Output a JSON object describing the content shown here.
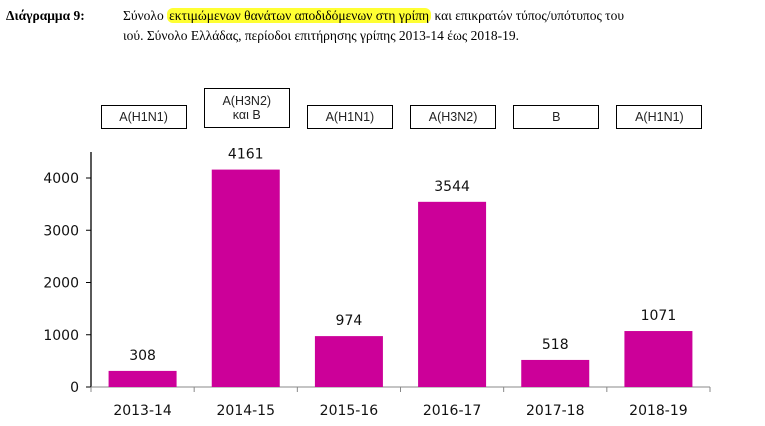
{
  "caption": {
    "label": "Διάγραμμα 9:",
    "text_before": "Σύνολο ",
    "highlighted": "εκτιμώμενων θανάτων αποδιδόμενων στη γρίπη",
    "text_after": " και επικρατών τύπος/υπότυπος του",
    "line2": "ιού. Σύνολο Ελλάδας, περίοδοι επιτήρησης γρίπης 2013-14 έως 2018-19."
  },
  "strain_boxes": [
    {
      "line1": "A(H1N1)",
      "line2": ""
    },
    {
      "line1": "A(H3N2)",
      "line2": "και B"
    },
    {
      "line1": "A(H1N1)",
      "line2": ""
    },
    {
      "line1": "A(H3N2)",
      "line2": ""
    },
    {
      "line1": "B",
      "line2": ""
    },
    {
      "line1": "A(H1N1)",
      "line2": ""
    }
  ],
  "colors": {
    "bar": "#cc0099",
    "highlight": "#ffff33"
  },
  "chart_data": {
    "type": "bar",
    "title": "Σύνολο εκτιμώμενων θανάτων αποδιδόμενων στη γρίπη και επικρατών τύπος/υπότυπος του ιού. Σύνολο Ελλάδας, περίοδοι επιτήρησης γρίπης 2013-14 έως 2018-19.",
    "categories": [
      "2013-14",
      "2014-15",
      "2015-16",
      "2016-17",
      "2017-18",
      "2018-19"
    ],
    "values": [
      308,
      4161,
      974,
      3544,
      518,
      1071
    ],
    "annotations": [
      "A(H1N1)",
      "A(H3N2) και B",
      "A(H1N1)",
      "A(H3N2)",
      "B",
      "A(H1N1)"
    ],
    "xlabel": "",
    "ylabel": "",
    "ylim": [
      0,
      4500
    ],
    "yticks": [
      0,
      1000,
      2000,
      3000,
      4000
    ],
    "grid": false,
    "legend": "none",
    "data_labels": true
  }
}
